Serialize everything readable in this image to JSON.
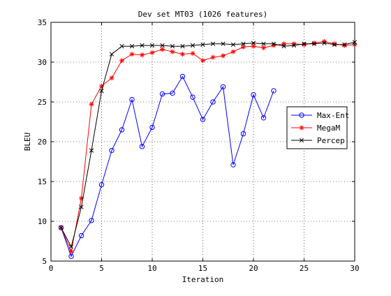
{
  "chart_data": {
    "type": "line",
    "title": "Dev set MT03 (1026 features)",
    "xlabel": "Iteration",
    "ylabel": "BLEU",
    "xlim": [
      0,
      30
    ],
    "ylim": [
      5,
      35
    ],
    "xticks": [
      0,
      5,
      10,
      15,
      20,
      25,
      30
    ],
    "yticks": [
      5,
      10,
      15,
      20,
      25,
      30,
      35
    ],
    "grid": true,
    "legend_position": "right-center",
    "series": [
      {
        "name": "Max-Ent",
        "color": "#0000ff",
        "marker": "circle",
        "x": [
          1,
          2,
          3,
          4,
          5,
          6,
          7,
          8,
          9,
          10,
          11,
          12,
          13,
          14,
          15,
          16,
          17,
          18,
          19,
          20,
          21,
          22
        ],
        "values": [
          9.2,
          5.6,
          8.2,
          10.1,
          14.6,
          18.9,
          21.5,
          25.3,
          19.4,
          21.8,
          26.0,
          26.1,
          28.2,
          25.6,
          22.8,
          25.0,
          26.9,
          17.1,
          21.0,
          25.9,
          23.0,
          26.4
        ]
      },
      {
        "name": "MegaM",
        "color": "#ff0000",
        "marker": "star",
        "x": [
          1,
          2,
          3,
          4,
          5,
          6,
          7,
          8,
          9,
          10,
          11,
          12,
          13,
          14,
          15,
          16,
          17,
          18,
          19,
          20,
          21,
          22,
          23,
          24,
          25,
          26,
          27,
          28,
          29,
          30
        ],
        "values": [
          9.2,
          6.2,
          12.9,
          24.7,
          27.0,
          28.0,
          30.2,
          31.0,
          30.9,
          31.2,
          31.6,
          31.3,
          31.0,
          31.1,
          30.2,
          30.6,
          30.8,
          31.3,
          31.9,
          32.0,
          31.8,
          32.1,
          32.3,
          32.3,
          32.2,
          32.4,
          32.6,
          32.3,
          32.1,
          32.2
        ]
      },
      {
        "name": "Percep",
        "color": "#000000",
        "marker": "x",
        "x": [
          1,
          2,
          3,
          4,
          5,
          6,
          7,
          8,
          9,
          10,
          11,
          12,
          13,
          14,
          15,
          16,
          17,
          18,
          19,
          20,
          21,
          22,
          23,
          24,
          25,
          26,
          27,
          28,
          29,
          30
        ],
        "values": [
          9.2,
          6.8,
          11.8,
          18.9,
          26.4,
          31.0,
          32.0,
          32.0,
          32.1,
          32.1,
          32.1,
          32.0,
          32.0,
          32.1,
          32.2,
          32.3,
          32.3,
          32.2,
          32.3,
          32.4,
          32.3,
          32.3,
          32.0,
          32.1,
          32.3,
          32.3,
          32.4,
          32.2,
          32.2,
          32.5
        ]
      }
    ]
  }
}
